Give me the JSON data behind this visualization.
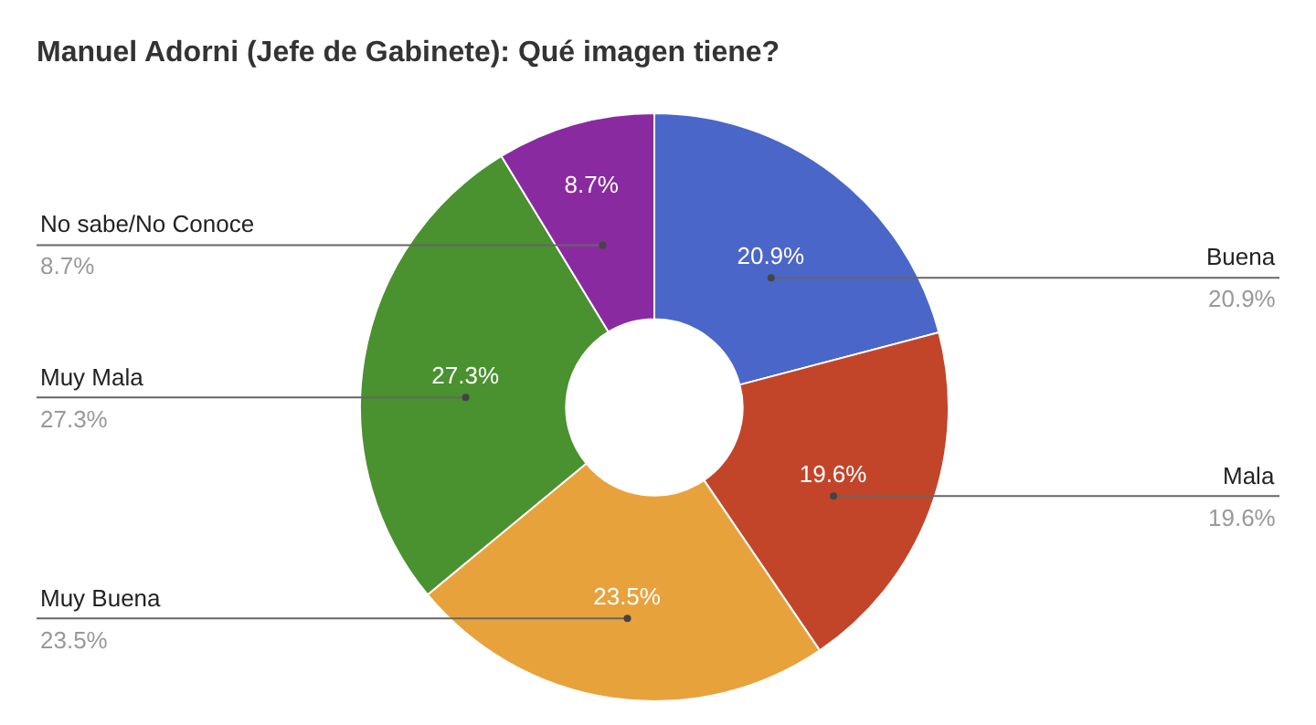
{
  "chart_data": {
    "type": "donut",
    "title": "Manuel Adorni (Jefe de Gabinete): Qué imagen tiene?",
    "categories": [
      "Buena",
      "Mala",
      "Muy Buena",
      "Muy Mala",
      "No sabe/No Conoce"
    ],
    "values": [
      20.9,
      19.6,
      23.5,
      27.3,
      8.7
    ],
    "colors": [
      "#4a66c8",
      "#c2452a",
      "#e8a23c",
      "#4a9130",
      "#8a2aa0"
    ],
    "value_labels": [
      "20.9%",
      "19.6%",
      "23.5%",
      "27.3%",
      "8.7%"
    ],
    "legend": false
  }
}
